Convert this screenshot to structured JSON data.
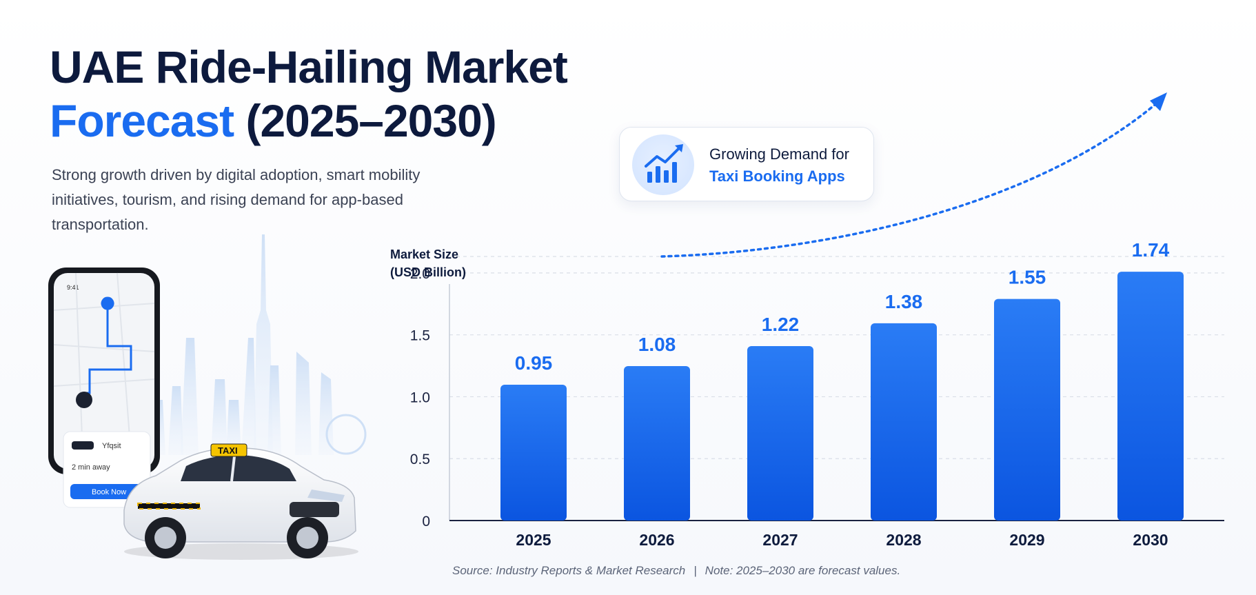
{
  "header": {
    "title_line1": "UAE Ride-Hailing Market",
    "title_accent": "Forecast",
    "title_rest": "(2025–2030)",
    "subtitle": "Strong growth driven by digital adoption, smart mobility initiatives, tourism, and rising demand for app-based transportation."
  },
  "callout": {
    "icon": "trend-chart-icon",
    "line1": "Growing Demand for",
    "line2": "Taxi Booking Apps"
  },
  "phone": {
    "status_time": "9:41",
    "car_label": "Yfqsit",
    "eta": "2 min away",
    "book_button": "Book Now"
  },
  "taxi_sign": "TAXI",
  "colors": {
    "navy": "#0d1a3d",
    "accent": "#1a6cf0",
    "bar_top": "#2a7cf5",
    "bar_bottom": "#0b55e0"
  },
  "chart_data": {
    "type": "bar",
    "ylabel_line1": "Market Size",
    "ylabel_line2": "(USD Billion)",
    "categories": [
      "2025",
      "2026",
      "2027",
      "2028",
      "2029",
      "2030"
    ],
    "values": [
      0.95,
      1.08,
      1.22,
      1.38,
      1.55,
      1.74
    ],
    "y_ticks": [
      "0",
      "0.5",
      "1.0",
      "1.5",
      "2.0"
    ],
    "ylim": [
      0,
      2.2
    ],
    "grid": true,
    "trend_arrow": true
  },
  "footer": {
    "source": "Source: Industry Reports & Market Research",
    "separator": "|",
    "note": "Note: 2025–2030 are forecast values."
  }
}
